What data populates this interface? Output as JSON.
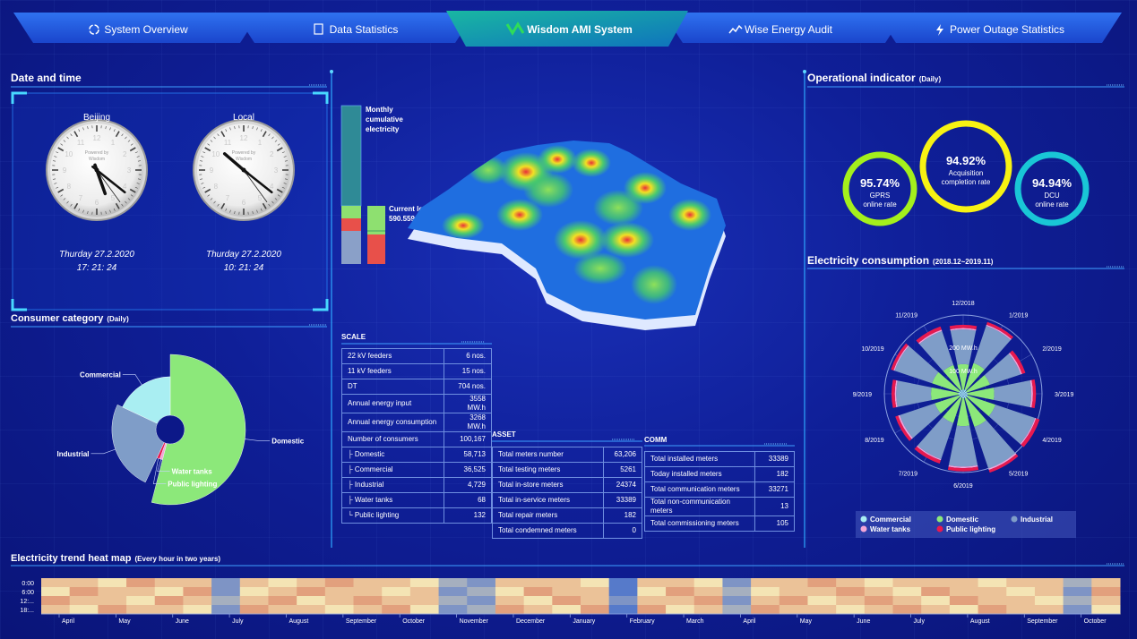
{
  "nav": {
    "tabs": [
      "System Overview",
      "Data Statistics",
      "Wisdom AMI System",
      "Wise Energy Audit",
      "Power Outage Statistics"
    ]
  },
  "date_time": {
    "title": "Date and time",
    "dial": [
      "12",
      "1",
      "2",
      "3",
      "4",
      "5",
      "6",
      "7",
      "8",
      "9",
      "10",
      "11"
    ],
    "clocks": [
      {
        "city": "Beijing",
        "brand": [
          "Powered by",
          "Wisdom"
        ],
        "date": "Thurday 27.2.2020",
        "time": "17: 21: 24"
      },
      {
        "city": "Local",
        "brand": [
          "Powered by",
          "Wisdom"
        ],
        "date": "Thurday 27.2.2020",
        "time": "10: 21: 24"
      }
    ]
  },
  "map_panel": {
    "monthly_label": [
      "Monthly",
      "cumulative",
      "electricity"
    ],
    "load_label": "Current load",
    "load_value": "590.559 kW"
  },
  "operational": {
    "title": "Operational indicator",
    "subtitle": "(Daily)",
    "gauges": [
      {
        "value": "95.74%",
        "label": [
          "GPRS",
          "online rate"
        ],
        "color": "#a4f01c"
      },
      {
        "value": "94.92%",
        "label": [
          "Acquisition",
          "completion rate"
        ],
        "color": "#f7f213"
      },
      {
        "value": "94.94%",
        "label": [
          "DCU",
          "online rate"
        ],
        "color": "#19c6d6"
      }
    ]
  },
  "tables": {
    "scale": {
      "title": "SCALE",
      "rows": [
        [
          "22 kV feeders",
          "6 nos."
        ],
        [
          "11 kV feeders",
          "15 nos."
        ],
        [
          "DT",
          "704 nos."
        ],
        [
          "Annual energy input",
          "3558 MW.h"
        ],
        [
          "Annual energy consumption",
          "3268 MW.h"
        ],
        [
          "Number of consumers",
          "100,167"
        ],
        [
          "├ Domestic",
          "58,713"
        ],
        [
          "├ Commercial",
          "36,525"
        ],
        [
          "├ Industrial",
          "4,729"
        ],
        [
          "├ Water tanks",
          "68"
        ],
        [
          "└ Public lighting",
          "132"
        ]
      ]
    },
    "asset": {
      "title": "ASSET",
      "rows": [
        [
          "Total meters number",
          "63,206"
        ],
        [
          "Total testing meters",
          "5261"
        ],
        [
          "Total in-store meters",
          "24374"
        ],
        [
          "Total in-service meters",
          "33389"
        ],
        [
          "Total repair meters",
          "182"
        ],
        [
          "Total condemned meters",
          "0"
        ]
      ]
    },
    "comm": {
      "title": "COMM",
      "rows": [
        [
          "Total installed meters",
          "33389"
        ],
        [
          "Today installed meters",
          "182"
        ],
        [
          "Total communication meters",
          "33271"
        ],
        [
          "Total non-communication meters",
          "13"
        ],
        [
          "Total commissioning meters",
          "105"
        ]
      ]
    }
  },
  "chart_data": [
    {
      "type": "pie",
      "title": "Consumer category",
      "subtitle": "(Daily)",
      "categories": [
        "Domestic",
        "Water tanks",
        "Public lighting",
        "Industrial",
        "Commercial"
      ],
      "values": [
        54,
        1.5,
        1.5,
        25,
        18
      ],
      "colors": [
        "#8ce87a",
        "#f2a6d8",
        "#e8194f",
        "#7f9dc8",
        "#a9eef2"
      ]
    },
    {
      "type": "polar_bar",
      "title": "Electricity consumption",
      "subtitle": "(2018.12~2019.11)",
      "categories": [
        "12/2018",
        "1/2019",
        "2/2019",
        "3/2019",
        "4/2019",
        "5/2019",
        "6/2019",
        "7/2019",
        "8/2019",
        "9/2019",
        "10/2019",
        "11/2019"
      ],
      "rlim": [
        0,
        340
      ],
      "rticks": [
        {
          "value": 100,
          "label": "100 MW.h"
        },
        {
          "value": 200,
          "label": "200 MW.h"
        }
      ],
      "series": [
        {
          "name": "Commercial",
          "color": "#a9eef2",
          "values": [
            18,
            20,
            17,
            19,
            22,
            21,
            20,
            18,
            19,
            21,
            20,
            19
          ]
        },
        {
          "name": "Domestic",
          "color": "#8ce87a",
          "values": [
            110,
            120,
            105,
            115,
            125,
            130,
            120,
            115,
            110,
            118,
            122,
            112
          ]
        },
        {
          "name": "Industrial",
          "color": "#7f9dc8",
          "values": [
            150,
            170,
            140,
            160,
            180,
            190,
            175,
            165,
            160,
            150,
            170,
            155
          ]
        },
        {
          "name": "Water tanks",
          "color": "#f2a6d8",
          "values": [
            6,
            5,
            6,
            7,
            5,
            6,
            6,
            5,
            7,
            6,
            5,
            6
          ]
        },
        {
          "name": "Public lighting",
          "color": "#e8194f",
          "values": [
            14,
            12,
            15,
            13,
            16,
            12,
            14,
            15,
            13,
            14,
            12,
            15
          ]
        }
      ]
    },
    {
      "type": "heatmap",
      "title": "Electricity trend heat map",
      "subtitle": "(Every hour in two years)",
      "y_labels": [
        "0:00",
        "6:00",
        "12:...",
        "18:..."
      ],
      "x_labels": [
        "April",
        "May",
        "June",
        "July",
        "August",
        "September",
        "October",
        "November",
        "December",
        "January",
        "February",
        "March",
        "April",
        "May",
        "June",
        "July",
        "August",
        "September",
        "October"
      ],
      "vlim": [
        0,
        10
      ],
      "colors": [
        "#2f5fd0",
        "#f4e4b4",
        "#c83a2a"
      ],
      "values": [
        [
          6,
          6,
          5,
          7,
          6,
          6,
          2,
          6,
          5,
          6,
          7,
          6,
          6,
          5,
          3,
          2,
          6,
          6,
          6,
          5,
          1,
          6,
          6,
          5,
          2,
          6,
          6,
          7,
          6,
          5,
          6,
          6,
          6,
          5,
          6,
          6,
          3,
          6
        ],
        [
          5,
          7,
          6,
          6,
          5,
          7,
          2,
          5,
          6,
          7,
          6,
          6,
          5,
          6,
          2,
          3,
          5,
          7,
          6,
          6,
          1,
          5,
          7,
          6,
          3,
          5,
          6,
          6,
          7,
          6,
          5,
          7,
          6,
          6,
          5,
          6,
          2,
          7
        ],
        [
          7,
          6,
          6,
          5,
          7,
          6,
          3,
          6,
          7,
          5,
          6,
          7,
          6,
          6,
          3,
          2,
          6,
          5,
          7,
          6,
          2,
          6,
          6,
          7,
          2,
          6,
          7,
          5,
          6,
          7,
          6,
          5,
          7,
          6,
          6,
          5,
          3,
          6
        ],
        [
          6,
          5,
          7,
          6,
          6,
          5,
          2,
          7,
          6,
          6,
          5,
          6,
          7,
          5,
          2,
          3,
          7,
          6,
          5,
          7,
          1,
          7,
          5,
          6,
          3,
          7,
          6,
          6,
          5,
          6,
          7,
          6,
          5,
          7,
          6,
          6,
          2,
          5
        ]
      ]
    }
  ]
}
